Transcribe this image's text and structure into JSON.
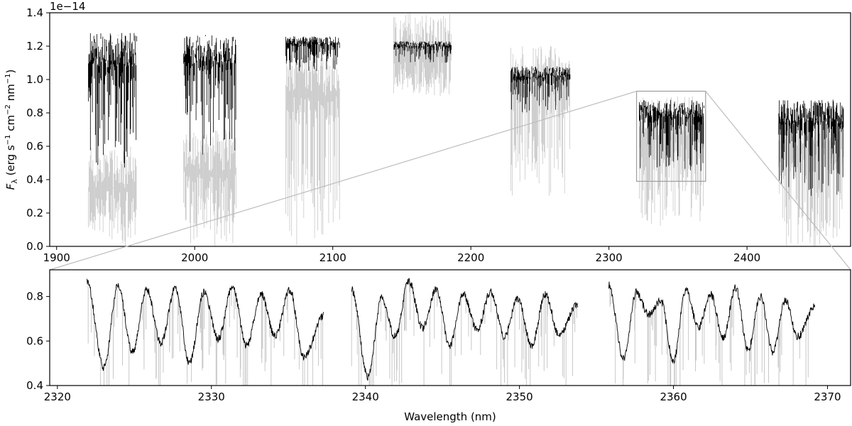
{
  "chart_data": [
    {
      "type": "line",
      "id": "main",
      "title": "",
      "xlabel": "",
      "ylabel_main": "F",
      "ylabel_sub": "λ",
      "ylabel_rest": " (erg s",
      "ylabel_units": [
        "−1",
        "−2",
        "−1"
      ],
      "ylabel_units_text": [
        " cm",
        " nm",
        ")"
      ],
      "offset_text": "1e−14",
      "xlim": [
        1895,
        2475
      ],
      "ylim": [
        0,
        1.4
      ],
      "xticks": [
        1900,
        2000,
        2100,
        2200,
        2300,
        2400
      ],
      "yticks": [
        0.0,
        0.2,
        0.4,
        0.6,
        0.8,
        1.0,
        1.2,
        1.4
      ],
      "ytick_labels": [
        "0.0",
        "0.2",
        "0.4",
        "0.6",
        "0.8",
        "1.0",
        "1.2",
        "1.4"
      ],
      "grid": false,
      "series": [
        {
          "role": "model (grey)",
          "color": "#c8c8c8",
          "segments": [
            {
              "x": [
                1923,
                1958
              ],
              "baseline": 0.35,
              "depth_to": 0.0
            },
            {
              "x": [
                1992,
                2030
              ],
              "baseline": 0.45,
              "depth_to": 0.0
            },
            {
              "x": [
                2066,
                2105
              ],
              "baseline": 0.9,
              "depth_to": 0.0
            },
            {
              "x": [
                2144,
                2186
              ],
              "baseline": 1.15,
              "depth_to": 0.9
            },
            {
              "x": [
                2229,
                2272
              ],
              "baseline": 0.95,
              "depth_to": 0.3
            },
            {
              "x": [
                2322,
                2369
              ],
              "baseline": 0.65,
              "depth_to": 0.12
            },
            {
              "x": [
                2423,
                2470
              ],
              "baseline": 0.6,
              "depth_to": 0.0
            }
          ]
        },
        {
          "role": "observed (black)",
          "color": "#000000",
          "segments": [
            {
              "x": [
                1923,
                1958
              ],
              "y_range": [
                0.45,
                1.28
              ]
            },
            {
              "x": [
                1992,
                2030
              ],
              "y_range": [
                0.55,
                1.27
              ]
            },
            {
              "x": [
                2066,
                2105
              ],
              "y_range": [
                1.05,
                1.26
              ]
            },
            {
              "x": [
                2144,
                2186
              ],
              "y_range": [
                1.1,
                1.23
              ]
            },
            {
              "x": [
                2229,
                2272
              ],
              "y_range": [
                0.8,
                1.08
              ]
            },
            {
              "x": [
                2322,
                2369
              ],
              "y_range": [
                0.45,
                0.88
              ]
            },
            {
              "x": [
                2423,
                2470
              ],
              "y_range": [
                0.3,
                0.88
              ]
            }
          ]
        }
      ],
      "zoom_box": {
        "x": [
          2320,
          2370
        ],
        "y": [
          0.39,
          0.93
        ]
      }
    },
    {
      "type": "line",
      "id": "zoom",
      "title": "",
      "xlabel": "Wavelength (nm)",
      "ylabel": "",
      "xlim": [
        2319.5,
        2371.5
      ],
      "ylim": [
        0.4,
        0.92
      ],
      "xticks": [
        2320,
        2330,
        2340,
        2350,
        2360,
        2370
      ],
      "yticks": [
        0.4,
        0.6,
        0.8
      ],
      "ytick_labels": [
        "0.4",
        "0.6",
        "0.8"
      ],
      "grid": false,
      "series": [
        {
          "role": "observed (black)",
          "color": "#000000",
          "segments": [
            {
              "x": [
                2321.9,
                2337.3
              ],
              "start_y": 0.87,
              "levels": [
                0.48,
                0.55,
                0.59,
                0.5,
                0.61,
                0.58,
                0.62,
                0.53
              ],
              "peaks": [
                0.85,
                0.83,
                0.84,
                0.82,
                0.84,
                0.81,
                0.83
              ]
            },
            {
              "x": [
                2339.1,
                2353.8
              ],
              "start_y": 0.83,
              "levels": [
                0.44,
                0.62,
                0.66,
                0.58,
                0.65,
                0.62,
                0.58,
                0.63
              ],
              "peaks": [
                0.79,
                0.87,
                0.83,
                0.81,
                0.82,
                0.79,
                0.81
              ]
            },
            {
              "x": [
                2355.8,
                2369.2
              ],
              "start_y": 0.85,
              "levels": [
                0.52,
                0.72,
                0.51,
                0.66,
                0.61,
                0.56,
                0.55,
                0.62
              ],
              "peaks": [
                0.82,
                0.78,
                0.83,
                0.81,
                0.84,
                0.8,
                0.78
              ]
            }
          ]
        },
        {
          "role": "model (grey)",
          "color": "#c8c8c8",
          "description_lines": "sharp absorption lines reaching down to 0.40"
        }
      ]
    }
  ]
}
